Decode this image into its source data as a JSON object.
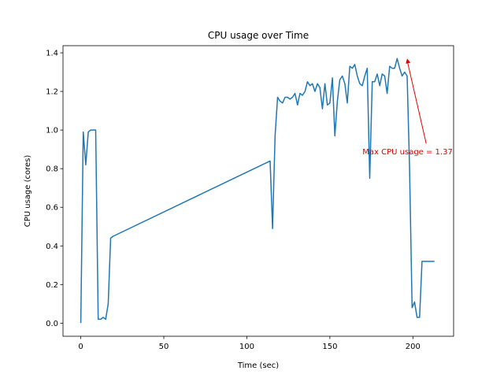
{
  "chart_data": {
    "type": "line",
    "title": "CPU usage over Time",
    "xlabel": "Time (sec)",
    "ylabel": "CPU usage (cores)",
    "xlim": [
      -10.7,
      224.5
    ],
    "ylim": [
      -0.068,
      1.437
    ],
    "xticks": [
      0,
      50,
      100,
      150,
      200
    ],
    "yticks": [
      0.0,
      0.2,
      0.4,
      0.6,
      0.8,
      1.0,
      1.2,
      1.4
    ],
    "ytick_labels": [
      "0.0",
      "0.2",
      "0.4",
      "0.6",
      "0.8",
      "1.0",
      "1.2",
      "1.4"
    ],
    "grid": false,
    "series": [
      {
        "name": "CPU usage",
        "color": "#1f77b4",
        "x": [
          0,
          1.5,
          3,
          4.5,
          6,
          7.5,
          9,
          10.5,
          12,
          13.5,
          15,
          16.5,
          18,
          19.5,
          114,
          115.5,
          117,
          118.5,
          120,
          121.5,
          123,
          124.5,
          126,
          127.5,
          129,
          130.5,
          132,
          133.5,
          135,
          136.5,
          138,
          139.5,
          141,
          142.5,
          144,
          145.5,
          147,
          148.5,
          150,
          151.5,
          153,
          154.5,
          156,
          157.5,
          159,
          160.5,
          162,
          163.5,
          165,
          166.5,
          168,
          169.5,
          171,
          172.5,
          174,
          175.5,
          177,
          178.5,
          180,
          181.5,
          183,
          184.5,
          186,
          187.5,
          189,
          190.5,
          192,
          193.5,
          195,
          196.5,
          198,
          199.5,
          201,
          202.5,
          204,
          205.5,
          207,
          208.5,
          210,
          211.5,
          213
        ],
        "values": [
          0.0,
          0.99,
          0.82,
          0.99,
          1.0,
          1.0,
          1.0,
          0.02,
          0.02,
          0.03,
          0.02,
          0.1,
          0.44,
          0.45,
          0.84,
          0.49,
          0.97,
          1.17,
          1.15,
          1.14,
          1.17,
          1.17,
          1.16,
          1.17,
          1.19,
          1.13,
          1.19,
          1.18,
          1.2,
          1.25,
          1.23,
          1.24,
          1.2,
          1.24,
          1.22,
          1.11,
          1.24,
          1.13,
          1.14,
          1.27,
          0.97,
          1.15,
          1.26,
          1.28,
          1.24,
          1.14,
          1.33,
          1.32,
          1.34,
          1.28,
          1.24,
          1.23,
          1.28,
          1.32,
          0.75,
          1.25,
          1.25,
          1.29,
          1.23,
          1.29,
          1.28,
          1.19,
          1.33,
          1.32,
          1.32,
          1.37,
          1.32,
          1.28,
          1.3,
          1.28,
          0.8,
          0.08,
          0.11,
          0.03,
          0.03,
          0.32,
          0.32,
          0.32,
          0.32,
          0.32,
          0.32
        ]
      }
    ],
    "annotations": [
      {
        "text": "Max CPU usage = 1.37",
        "x": 196.5,
        "y": 1.37,
        "text_x": 172,
        "text_y": 0.875,
        "color": "#e00000"
      }
    ]
  }
}
